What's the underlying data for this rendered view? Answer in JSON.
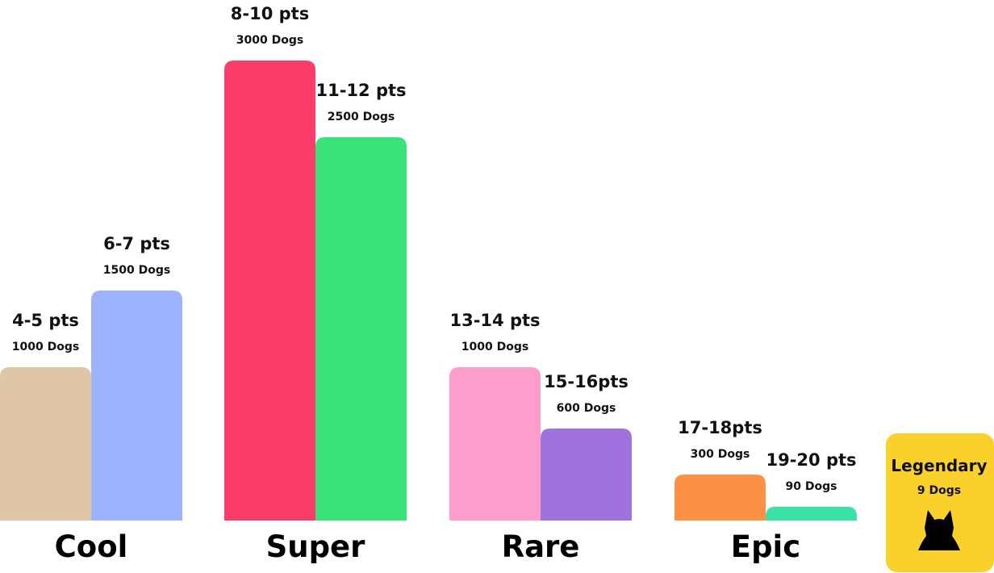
{
  "chart_data": {
    "type": "bar",
    "ylabel": "",
    "xlabel": "",
    "ylim": [
      0,
      3000
    ],
    "categories": [
      "Cool",
      "Super",
      "Rare",
      "Epic"
    ],
    "bars": [
      {
        "category": "Cool",
        "label": "4-5 pts",
        "count_label": "1000 Dogs",
        "value": 1000,
        "color": "#DFC6A6"
      },
      {
        "category": "Cool",
        "label": "6-7 pts",
        "count_label": "1500 Dogs",
        "value": 1500,
        "color": "#9DB3FF"
      },
      {
        "category": "Super",
        "label": "8-10 pts",
        "count_label": "3000 Dogs",
        "value": 3000,
        "color": "#FB3C6A"
      },
      {
        "category": "Super",
        "label": "11-12 pts",
        "count_label": "2500 Dogs",
        "value": 2500,
        "color": "#3BE27A"
      },
      {
        "category": "Rare",
        "label": "13-14 pts",
        "count_label": "1000 Dogs",
        "value": 1000,
        "color": "#FC9DCC"
      },
      {
        "category": "Rare",
        "label": "15-16pts",
        "count_label": "600 Dogs",
        "value": 600,
        "color": "#A072DE"
      },
      {
        "category": "Epic",
        "label": "17-18pts",
        "count_label": "300 Dogs",
        "value": 300,
        "color": "#FC9145"
      },
      {
        "category": "Epic",
        "label": "19-20 pts",
        "count_label": "90 Dogs",
        "value": 90,
        "color": "#3AE2A3"
      }
    ],
    "legendary": {
      "title": "Legendary",
      "count_label": "9 Dogs",
      "value": 9,
      "color": "#FAD12A",
      "icon": "dog-silhouette-icon"
    }
  }
}
